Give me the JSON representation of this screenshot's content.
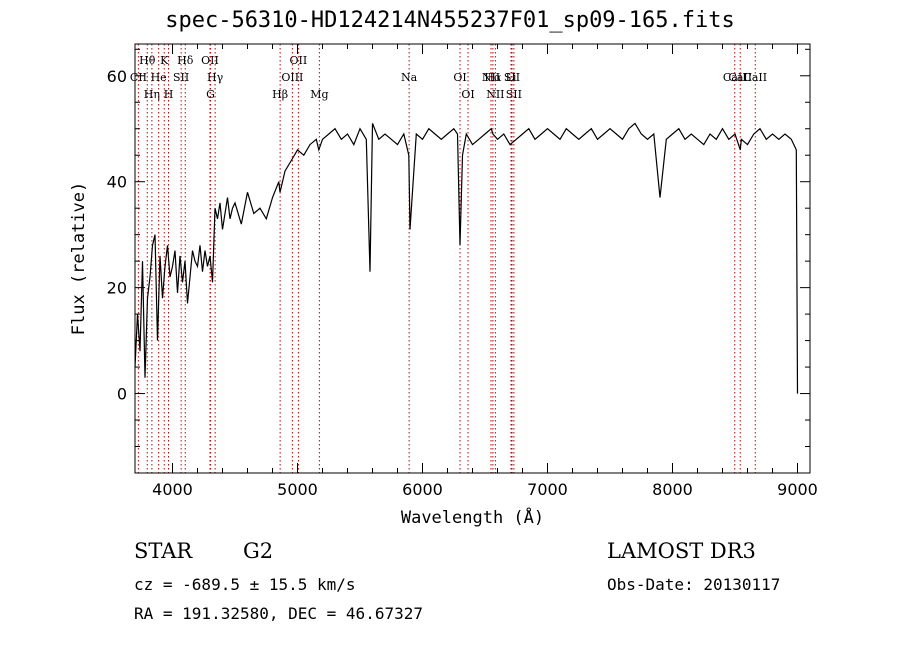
{
  "chart_data": {
    "type": "line",
    "title": "spec-56310-HD124214N455237F01_sp09-165.fits",
    "xlabel": "Wavelength (Å)",
    "ylabel": "Flux (relative)",
    "xlim": [
      3700,
      9100
    ],
    "ylim": [
      -15,
      66
    ],
    "xticks": [
      4000,
      5000,
      6000,
      7000,
      8000,
      9000
    ],
    "yticks": [
      0,
      20,
      40,
      60
    ],
    "grid": false,
    "line_color": "#000000",
    "marker_color": "#cc0000",
    "series": [
      {
        "values_x": [
          3700,
          3720,
          3740,
          3760,
          3780,
          3800,
          3820,
          3840,
          3860,
          3880,
          3900,
          3920,
          3940,
          3960,
          3980,
          4000,
          4020,
          4040,
          4060,
          4080,
          4100,
          4120,
          4140,
          4160,
          4180,
          4200,
          4220,
          4240,
          4260,
          4280,
          4300,
          4320,
          4340,
          4360,
          4380,
          4400,
          4420,
          4440,
          4460,
          4480,
          4500,
          4550,
          4600,
          4650,
          4700,
          4750,
          4800,
          4850,
          4860,
          4900,
          4950,
          5000,
          5050,
          5100,
          5150,
          5170,
          5200,
          5250,
          5300,
          5350,
          5400,
          5450,
          5500,
          5550,
          5580,
          5600,
          5650,
          5700,
          5750,
          5800,
          5850,
          5890,
          5900,
          5950,
          6000,
          6050,
          6100,
          6150,
          6200,
          6250,
          6280,
          6300,
          6320,
          6350,
          6400,
          6450,
          6500,
          6550,
          6563,
          6600,
          6650,
          6700,
          6750,
          6800,
          6850,
          6900,
          6950,
          7000,
          7050,
          7100,
          7150,
          7200,
          7250,
          7300,
          7350,
          7400,
          7450,
          7500,
          7550,
          7600,
          7650,
          7700,
          7750,
          7800,
          7850,
          7900,
          7950,
          8000,
          8050,
          8100,
          8150,
          8200,
          8250,
          8300,
          8350,
          8400,
          8450,
          8500,
          8542,
          8550,
          8600,
          8650,
          8700,
          8750,
          8800,
          8850,
          8900,
          8950,
          8990,
          9000
        ],
        "values_y": [
          5,
          15,
          8,
          25,
          3,
          18,
          22,
          28,
          30,
          10,
          26,
          18,
          24,
          28,
          22,
          24,
          27,
          19,
          26,
          21,
          25,
          17,
          22,
          27,
          25,
          24,
          28,
          23,
          27,
          24,
          26,
          21,
          35,
          33,
          36,
          31,
          34,
          37,
          33,
          35,
          36,
          32,
          38,
          34,
          35,
          33,
          37,
          40,
          38,
          42,
          44,
          46,
          45,
          47,
          48,
          46,
          48,
          49,
          50,
          48,
          49,
          47,
          50,
          48,
          23,
          51,
          48,
          49,
          48,
          47,
          49,
          45,
          31,
          49,
          48,
          50,
          49,
          48,
          49,
          50,
          49,
          28,
          45,
          49,
          47,
          48,
          49,
          50,
          49,
          48,
          49,
          47,
          48,
          49,
          50,
          48,
          49,
          50,
          49,
          48,
          50,
          49,
          48,
          49,
          50,
          48,
          49,
          50,
          49,
          48,
          50,
          51,
          49,
          48,
          49,
          37,
          48,
          49,
          50,
          48,
          49,
          48,
          47,
          49,
          48,
          50,
          48,
          49,
          46,
          48,
          47,
          49,
          50,
          48,
          49,
          48,
          49,
          48,
          46,
          0
        ]
      }
    ],
    "lines": [
      {
        "label": "Hθ",
        "x": 3798
      },
      {
        "label": "K",
        "x": 3934
      },
      {
        "label": "Hδ",
        "x": 4102
      },
      {
        "label": "OII",
        "x": 4300
      },
      {
        "label": "OII",
        "x": 5007
      },
      {
        "label": "CII",
        "x": 3727
      },
      {
        "label": "He",
        "x": 3889
      },
      {
        "label": "SII",
        "x": 4069
      },
      {
        "label": "Hγ",
        "x": 4341
      },
      {
        "label": "OIII",
        "x": 4959
      },
      {
        "label": "Na",
        "x": 5893
      },
      {
        "label": "OI",
        "x": 6300
      },
      {
        "label": "Hα",
        "x": 6563
      },
      {
        "label": "SII",
        "x": 6716
      },
      {
        "label": "NII",
        "x": 6548
      },
      {
        "label": "Li",
        "x": 6708
      },
      {
        "label": "CaII",
        "x": 8498
      },
      {
        "label": "CaII",
        "x": 8542
      },
      {
        "label": "CaII",
        "x": 8662
      },
      {
        "label": "Hη",
        "x": 3835
      },
      {
        "label": "H",
        "x": 3968
      },
      {
        "label": "G",
        "x": 4304
      },
      {
        "label": "Hβ",
        "x": 4861
      },
      {
        "label": "Mg",
        "x": 5175
      },
      {
        "label": "OI",
        "x": 6364
      },
      {
        "label": "NII",
        "x": 6583
      },
      {
        "label": "SII",
        "x": 6731
      }
    ]
  },
  "footer": {
    "object_class": "STAR",
    "subclass": "G2",
    "survey": "LAMOST DR3",
    "cz": "cz = -689.5 ± 15.5 km/s",
    "obs_date": "Obs-Date: 20130117",
    "radec": "RA = 191.32580, DEC =  46.67327"
  }
}
